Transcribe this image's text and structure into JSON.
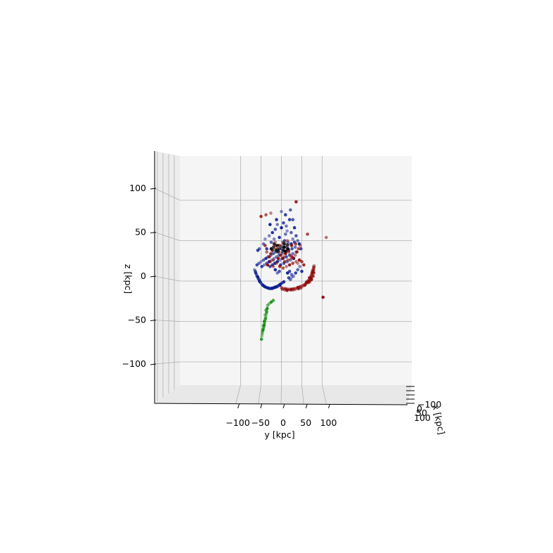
{
  "chart_data": {
    "type": "scatter",
    "projection": "3d",
    "title": "",
    "xlabel": "x [kpc]",
    "ylabel": "y [kpc]",
    "zlabel": "z [kpc]",
    "xticks": [
      "−100",
      "0",
      "50",
      "100"
    ],
    "yticks": [
      "−100",
      "−50",
      "0",
      "50",
      "100"
    ],
    "zticks": [
      "−100",
      "−50",
      "0",
      "50",
      "100"
    ],
    "ylim": [
      -140,
      140
    ],
    "zlim": [
      -140,
      140
    ],
    "grid": true,
    "pane_color": "#f2f2f2",
    "series": [
      {
        "color": "#0b1d8f",
        "points": [
          [
            -66,
            14
          ],
          [
            -63,
            10
          ],
          [
            -60,
            6
          ],
          [
            -57,
            3
          ],
          [
            -54,
            0
          ],
          [
            -51,
            -2
          ],
          [
            -48,
            -4
          ],
          [
            -45,
            -5.5
          ],
          [
            -42,
            -6.5
          ],
          [
            -39,
            -7.5
          ],
          [
            -36,
            -8
          ],
          [
            -33,
            -8.5
          ],
          [
            -30,
            -9
          ],
          [
            -27,
            -9
          ],
          [
            -24,
            -9
          ],
          [
            -21,
            -8.5
          ],
          [
            -18,
            -8
          ],
          [
            -15,
            -7.5
          ],
          [
            -12,
            -7
          ],
          [
            -9,
            -6
          ],
          [
            -6,
            -5
          ],
          [
            -3,
            -4
          ],
          [
            0,
            -3
          ],
          [
            3,
            -2
          ],
          [
            6,
            -1
          ],
          [
            -64,
            12
          ],
          [
            -61,
            8
          ],
          [
            -58,
            5
          ],
          [
            -55,
            2
          ],
          [
            -52,
            -1
          ],
          [
            -46,
            -4.5
          ],
          [
            -40,
            -7
          ],
          [
            -34,
            -8.5
          ],
          [
            -28,
            -9.5
          ],
          [
            -22,
            -9
          ],
          [
            -16,
            -8
          ],
          [
            -10,
            -7
          ],
          [
            -4,
            -5
          ],
          [
            -60,
            20
          ],
          [
            -55,
            22
          ],
          [
            -50,
            24
          ],
          [
            -48,
            18
          ],
          [
            -44,
            26
          ],
          [
            -42,
            20
          ],
          [
            -38,
            28
          ],
          [
            -36,
            22
          ],
          [
            -33,
            30
          ],
          [
            -30,
            24
          ],
          [
            -28,
            18
          ],
          [
            -26,
            32
          ],
          [
            -24,
            26
          ],
          [
            -22,
            20
          ],
          [
            -20,
            34
          ],
          [
            -18,
            28
          ],
          [
            -16,
            22
          ],
          [
            -14,
            36
          ],
          [
            -12,
            30
          ],
          [
            -10,
            24
          ],
          [
            -8,
            38
          ],
          [
            -6,
            32
          ],
          [
            -4,
            26
          ],
          [
            -2,
            20
          ],
          [
            0,
            40
          ],
          [
            2,
            34
          ],
          [
            4,
            28
          ],
          [
            6,
            22
          ],
          [
            8,
            42
          ],
          [
            10,
            36
          ],
          [
            12,
            30
          ],
          [
            14,
            24
          ],
          [
            16,
            44
          ],
          [
            18,
            38
          ],
          [
            20,
            32
          ],
          [
            22,
            26
          ],
          [
            24,
            46
          ],
          [
            26,
            40
          ],
          [
            28,
            34
          ],
          [
            30,
            28
          ],
          [
            32,
            48
          ],
          [
            34,
            42
          ],
          [
            36,
            36
          ],
          [
            -58,
            38
          ],
          [
            -54,
            40
          ],
          [
            -30,
            56
          ],
          [
            -22,
            60
          ],
          [
            -15,
            64
          ],
          [
            -10,
            70
          ],
          [
            0,
            66
          ],
          [
            5,
            72
          ],
          [
            10,
            58
          ],
          [
            14,
            62
          ],
          [
            20,
            76
          ],
          [
            24,
            60
          ],
          [
            28,
            52
          ],
          [
            32,
            66
          ],
          [
            36,
            56
          ],
          [
            40,
            50
          ],
          [
            44,
            46
          ],
          [
            48,
            40
          ],
          [
            -44,
            46
          ],
          [
            -40,
            52
          ],
          [
            -36,
            40
          ],
          [
            -25,
            48
          ],
          [
            -18,
            52
          ],
          [
            -5,
            54
          ],
          [
            8,
            50
          ],
          [
            16,
            48
          ],
          [
            15,
            10
          ],
          [
            20,
            12
          ],
          [
            25,
            8
          ],
          [
            30,
            6
          ],
          [
            35,
            10
          ],
          [
            40,
            14
          ],
          [
            45,
            18
          ],
          [
            50,
            12
          ],
          [
            -5,
            12
          ],
          [
            -10,
            10
          ],
          [
            -15,
            14
          ],
          [
            18,
            4
          ],
          [
            22,
            2
          ],
          [
            26,
            5
          ],
          [
            10,
            82
          ],
          [
            22,
            88
          ],
          [
            0,
            86
          ],
          [
            -12,
            76
          ],
          [
            28,
            76
          ],
          [
            12,
            68
          ],
          [
            -28,
            70
          ]
        ]
      },
      {
        "color": "#8b0b0b",
        "points": [
          [
            0,
            -8
          ],
          [
            5,
            -9
          ],
          [
            10,
            -9.5
          ],
          [
            15,
            -10
          ],
          [
            20,
            -10
          ],
          [
            25,
            -10
          ],
          [
            30,
            -9.5
          ],
          [
            35,
            -9
          ],
          [
            40,
            -8
          ],
          [
            45,
            -7
          ],
          [
            50,
            -6
          ],
          [
            55,
            -4.5
          ],
          [
            60,
            -3
          ],
          [
            65,
            -1
          ],
          [
            70,
            1
          ],
          [
            72,
            3
          ],
          [
            74,
            5
          ],
          [
            76,
            8
          ],
          [
            78,
            11
          ],
          [
            79,
            14
          ],
          [
            80,
            17
          ],
          [
            77,
            14
          ],
          [
            75,
            10
          ],
          [
            73,
            7
          ],
          [
            71,
            4
          ],
          [
            68,
            0
          ],
          [
            2,
            -10
          ],
          [
            8,
            -11
          ],
          [
            14,
            -11.5
          ],
          [
            22,
            -11
          ],
          [
            28,
            -11
          ],
          [
            34,
            -10.5
          ],
          [
            42,
            -9.5
          ],
          [
            48,
            -8.5
          ],
          [
            54,
            -6
          ],
          [
            58,
            -5
          ],
          [
            62,
            -2
          ],
          [
            66,
            1
          ],
          [
            69,
            4
          ],
          [
            76,
            12
          ],
          [
            79,
            17
          ],
          [
            80,
            19
          ],
          [
            62,
            -1
          ],
          [
            66,
            -2
          ],
          [
            70,
            -1
          ],
          [
            74,
            2
          ],
          [
            78,
            6
          ],
          [
            80,
            10
          ],
          [
            -30,
            30
          ],
          [
            -26,
            34
          ],
          [
            -22,
            38
          ],
          [
            -18,
            42
          ],
          [
            -14,
            44
          ],
          [
            -10,
            40
          ],
          [
            -6,
            36
          ],
          [
            -2,
            32
          ],
          [
            2,
            28
          ],
          [
            6,
            30
          ],
          [
            10,
            34
          ],
          [
            14,
            38
          ],
          [
            18,
            36
          ],
          [
            22,
            32
          ],
          [
            26,
            30
          ],
          [
            30,
            28
          ],
          [
            34,
            32
          ],
          [
            38,
            36
          ],
          [
            42,
            40
          ],
          [
            46,
            44
          ],
          [
            -34,
            20
          ],
          [
            -28,
            24
          ],
          [
            -20,
            26
          ],
          [
            -12,
            22
          ],
          [
            -4,
            18
          ],
          [
            4,
            16
          ],
          [
            12,
            18
          ],
          [
            20,
            20
          ],
          [
            28,
            22
          ],
          [
            36,
            24
          ],
          [
            44,
            26
          ],
          [
            50,
            24
          ],
          [
            -25,
            40
          ],
          [
            -15,
            48
          ],
          [
            -5,
            44
          ],
          [
            5,
            46
          ],
          [
            15,
            50
          ],
          [
            25,
            44
          ],
          [
            35,
            46
          ],
          [
            -20,
            18
          ],
          [
            -8,
            28
          ],
          [
            8,
            24
          ],
          [
            16,
            26
          ],
          [
            24,
            28
          ],
          [
            -50,
            80
          ],
          [
            -38,
            82
          ],
          [
            -26,
            84
          ],
          [
            36,
            98
          ],
          [
            64,
            58
          ],
          [
            110,
            54
          ],
          [
            102,
            -20
          ],
          [
            -40,
            44
          ],
          [
            -36,
            36
          ],
          [
            40,
            22
          ],
          [
            55,
            20
          ]
        ]
      },
      {
        "color": "#000000",
        "points": [
          [
            -25,
            40
          ],
          [
            -20,
            42
          ],
          [
            -15,
            39
          ],
          [
            -10,
            44
          ],
          [
            -5,
            40
          ],
          [
            0,
            43
          ],
          [
            5,
            38
          ],
          [
            8,
            46
          ],
          [
            12,
            42
          ],
          [
            16,
            40
          ],
          [
            -18,
            46
          ],
          [
            -8,
            36
          ],
          [
            2,
            36
          ],
          [
            10,
            37
          ],
          [
            15,
            45
          ],
          [
            -22,
            38
          ],
          [
            6,
            42
          ],
          [
            -12,
            38
          ],
          [
            4,
            48
          ]
        ]
      },
      {
        "color": "#148c14",
        "points": [
          [
            -35,
            -34
          ],
          [
            -36,
            -38
          ],
          [
            -37,
            -40
          ],
          [
            -38,
            -43
          ],
          [
            -39,
            -46
          ],
          [
            -40,
            -48
          ],
          [
            -41,
            -51
          ],
          [
            -42,
            -54
          ],
          [
            -43,
            -56
          ],
          [
            -44,
            -58
          ],
          [
            -45,
            -60
          ],
          [
            -46,
            -62
          ],
          [
            -47,
            -65
          ],
          [
            -48,
            -68
          ],
          [
            -49,
            -72
          ],
          [
            -38,
            -36
          ],
          [
            -40,
            -42
          ],
          [
            -42,
            -50
          ],
          [
            -44,
            -55
          ],
          [
            -30,
            -28
          ],
          [
            -25,
            -26
          ],
          [
            -20,
            -24
          ],
          [
            -34,
            -30
          ]
        ]
      }
    ]
  }
}
